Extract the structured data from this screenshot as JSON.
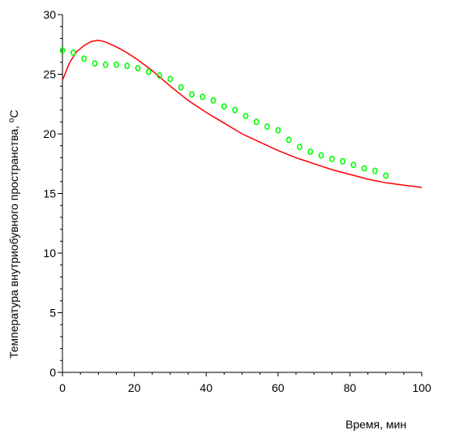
{
  "chart_data": {
    "type": "line",
    "title": "",
    "xlabel": "Время, мин",
    "ylabel_main": "Температура внутриобувного пространства, ",
    "ylabel_unit": "C",
    "ylabel_degree": "o",
    "xlim": [
      0,
      100
    ],
    "ylim": [
      0,
      30
    ],
    "xticks": [
      0,
      20,
      40,
      60,
      80,
      100
    ],
    "yticks": [
      0,
      5,
      10,
      15,
      20,
      25,
      30
    ],
    "grid": false,
    "series": [
      {
        "style": "line",
        "color": "#ff0000",
        "x": [
          0,
          2,
          4,
          6,
          8,
          10,
          12,
          15,
          18,
          21,
          25,
          30,
          35,
          40,
          45,
          50,
          55,
          60,
          65,
          70,
          75,
          80,
          85,
          90,
          95,
          100
        ],
        "y": [
          24.5,
          26.0,
          26.9,
          27.4,
          27.75,
          27.85,
          27.7,
          27.3,
          26.8,
          26.2,
          25.3,
          24.0,
          22.8,
          21.8,
          20.9,
          20.0,
          19.3,
          18.6,
          18.0,
          17.5,
          17.0,
          16.6,
          16.2,
          15.9,
          15.7,
          15.5
        ]
      },
      {
        "style": "markers",
        "color": "#00ff00",
        "x": [
          0,
          3,
          6,
          9,
          12,
          15,
          18,
          21,
          24,
          27,
          30,
          33,
          36,
          39,
          42,
          45,
          48,
          51,
          54,
          57,
          60,
          63,
          66,
          69,
          72,
          75,
          78,
          81,
          84,
          87,
          90
        ],
        "y": [
          27.0,
          26.8,
          26.3,
          25.9,
          25.8,
          25.8,
          25.7,
          25.5,
          25.2,
          24.9,
          24.6,
          23.9,
          23.3,
          23.1,
          22.8,
          22.3,
          22.0,
          21.5,
          21.0,
          20.6,
          20.3,
          19.5,
          18.9,
          18.5,
          18.2,
          17.9,
          17.7,
          17.4,
          17.1,
          16.9,
          16.5
        ]
      }
    ]
  }
}
